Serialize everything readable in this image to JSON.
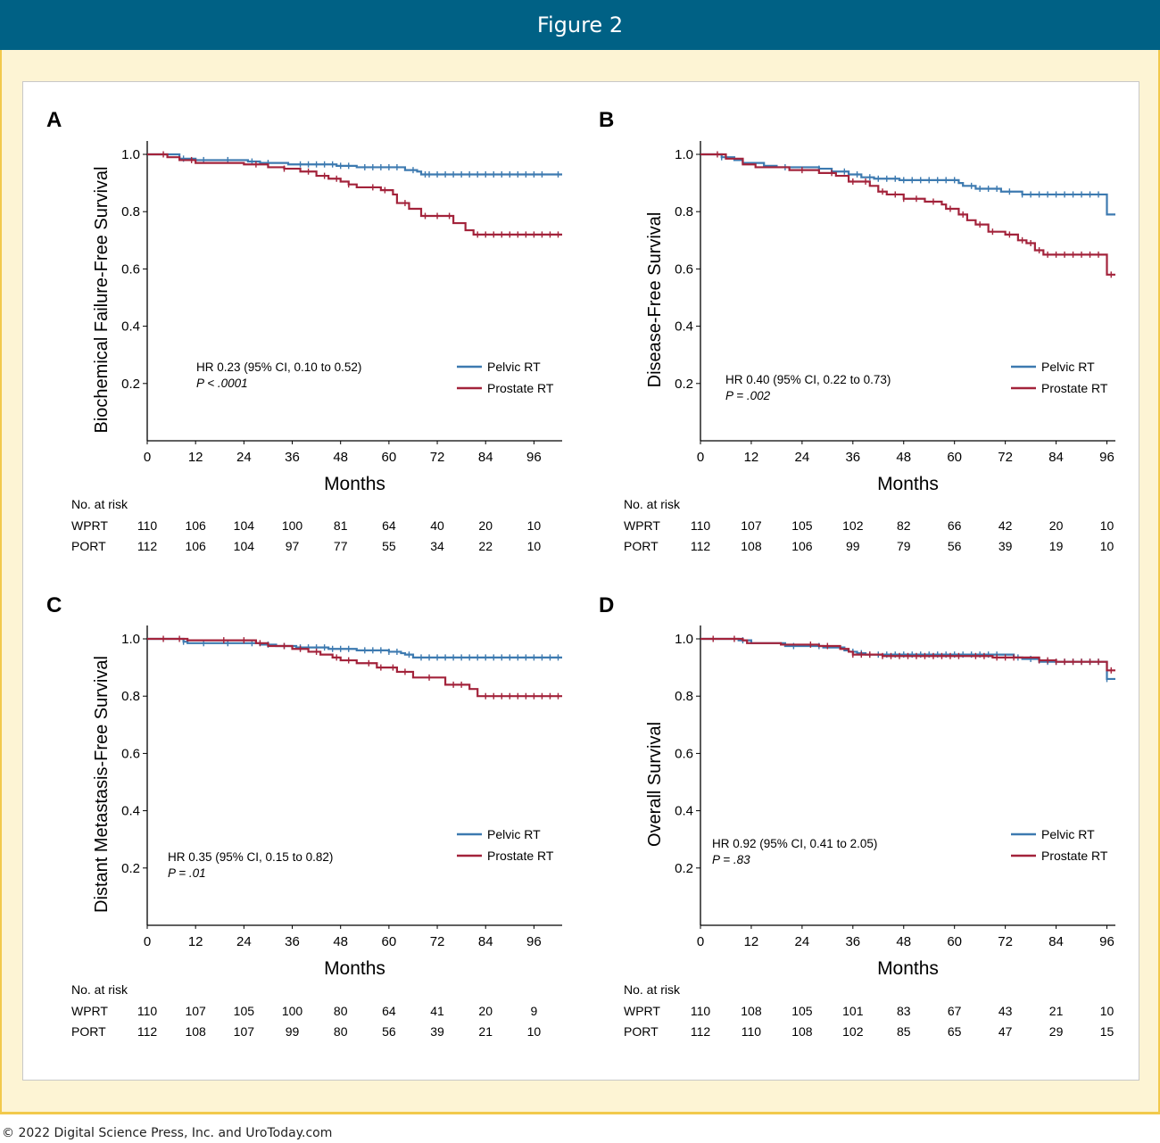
{
  "header": {
    "title": "Figure 2"
  },
  "footer": {
    "copyright": "© 2022 Digital Science Press, Inc. and UroToday.com"
  },
  "colors": {
    "pelvic": "#3d7ab0",
    "prostate": "#a3233b",
    "banner": "#006185",
    "frame": "#f2c94c"
  },
  "chart_data": [
    {
      "type": "line",
      "panel": "A",
      "ylabel": "Biochemical Failure-Free Survival",
      "xlabel": "Months",
      "xlim": [
        0,
        103
      ],
      "ylim": [
        0,
        1.0
      ],
      "xticks": [
        0,
        12,
        24,
        36,
        48,
        60,
        72,
        84,
        96
      ],
      "yticks": [
        1.0,
        0.8,
        0.6,
        0.4,
        0.2
      ],
      "stats": [
        "HR 0.23 (95% CI, 0.10 to 0.52)",
        "P < .0001"
      ],
      "risk_title": "No. at risk",
      "risk_times": [
        0,
        12,
        24,
        36,
        48,
        60,
        72,
        84,
        96
      ],
      "series": [
        {
          "name": "Pelvic RT",
          "risk_label": "WPRT",
          "risk": [
            110,
            106,
            104,
            100,
            81,
            64,
            40,
            20,
            10
          ],
          "steps": [
            [
              0,
              1.0
            ],
            [
              3,
              1.0
            ],
            [
              8,
              0.985
            ],
            [
              12,
              0.98
            ],
            [
              25,
              0.975
            ],
            [
              28,
              0.97
            ],
            [
              35,
              0.965
            ],
            [
              47,
              0.96
            ],
            [
              52,
              0.955
            ],
            [
              64,
              0.945
            ],
            [
              67,
              0.94
            ],
            [
              68,
              0.93
            ],
            [
              103,
              0.93
            ]
          ],
          "censors": [
            9,
            14,
            20,
            26,
            30,
            38,
            40,
            42,
            44,
            46,
            48,
            50,
            54,
            56,
            58,
            60,
            62,
            66,
            69,
            70,
            72,
            74,
            76,
            78,
            80,
            82,
            84,
            86,
            88,
            90,
            92,
            94,
            96,
            98,
            102
          ]
        },
        {
          "name": "Prostate RT",
          "risk_label": "PORT",
          "risk": [
            112,
            106,
            104,
            97,
            77,
            55,
            34,
            22,
            10
          ],
          "steps": [
            [
              0,
              1.0
            ],
            [
              5,
              0.99
            ],
            [
              8,
              0.98
            ],
            [
              12,
              0.97
            ],
            [
              24,
              0.965
            ],
            [
              30,
              0.955
            ],
            [
              34,
              0.95
            ],
            [
              38,
              0.94
            ],
            [
              42,
              0.925
            ],
            [
              45,
              0.915
            ],
            [
              48,
              0.905
            ],
            [
              50,
              0.895
            ],
            [
              52,
              0.885
            ],
            [
              58,
              0.875
            ],
            [
              61,
              0.86
            ],
            [
              62,
              0.83
            ],
            [
              65,
              0.81
            ],
            [
              68,
              0.785
            ],
            [
              76,
              0.76
            ],
            [
              79,
              0.735
            ],
            [
              81,
              0.72
            ],
            [
              103,
              0.72
            ]
          ],
          "censors": [
            4,
            11,
            27,
            34,
            40,
            44,
            47,
            50,
            56,
            59,
            64,
            69,
            72,
            75,
            82,
            84,
            86,
            88,
            90,
            92,
            94,
            96,
            98,
            100,
            102
          ]
        }
      ]
    },
    {
      "type": "line",
      "panel": "B",
      "ylabel": "Disease-Free Survival",
      "xlabel": "Months",
      "xlim": [
        0,
        98
      ],
      "ylim": [
        0,
        1.0
      ],
      "xticks": [
        0,
        12,
        24,
        36,
        48,
        60,
        72,
        84,
        96
      ],
      "yticks": [
        1.0,
        0.8,
        0.6,
        0.4,
        0.2
      ],
      "stats": [
        "HR 0.40 (95% CI, 0.22 to 0.73)",
        "P = .002"
      ],
      "risk_title": "No. at risk",
      "risk_times": [
        0,
        12,
        24,
        36,
        48,
        60,
        72,
        84,
        96
      ],
      "series": [
        {
          "name": "Pelvic RT",
          "risk_label": "WPRT",
          "risk": [
            110,
            107,
            105,
            102,
            82,
            66,
            42,
            20,
            10
          ],
          "steps": [
            [
              0,
              1.0
            ],
            [
              5,
              0.99
            ],
            [
              8,
              0.98
            ],
            [
              10,
              0.97
            ],
            [
              15,
              0.96
            ],
            [
              18,
              0.955
            ],
            [
              28,
              0.95
            ],
            [
              31,
              0.94
            ],
            [
              35,
              0.93
            ],
            [
              38,
              0.92
            ],
            [
              41,
              0.915
            ],
            [
              47,
              0.91
            ],
            [
              61,
              0.9
            ],
            [
              62,
              0.89
            ],
            [
              65,
              0.88
            ],
            [
              71,
              0.87
            ],
            [
              76,
              0.86
            ],
            [
              96,
              0.86
            ],
            [
              96,
              0.79
            ],
            [
              98,
              0.79
            ]
          ],
          "censors": [
            5,
            20,
            28,
            34,
            37,
            40,
            42,
            44,
            46,
            48,
            50,
            52,
            54,
            56,
            58,
            60,
            64,
            66,
            68,
            70,
            73,
            76,
            78,
            80,
            82,
            84,
            86,
            88,
            90,
            92,
            94
          ]
        },
        {
          "name": "Prostate RT",
          "risk_label": "PORT",
          "risk": [
            112,
            108,
            106,
            99,
            79,
            56,
            39,
            19,
            10
          ],
          "steps": [
            [
              0,
              1.0
            ],
            [
              6,
              0.985
            ],
            [
              10,
              0.965
            ],
            [
              13,
              0.955
            ],
            [
              21,
              0.945
            ],
            [
              28,
              0.935
            ],
            [
              32,
              0.925
            ],
            [
              35,
              0.905
            ],
            [
              40,
              0.89
            ],
            [
              42,
              0.87
            ],
            [
              44,
              0.86
            ],
            [
              48,
              0.845
            ],
            [
              53,
              0.835
            ],
            [
              57,
              0.825
            ],
            [
              58,
              0.81
            ],
            [
              61,
              0.79
            ],
            [
              63,
              0.77
            ],
            [
              65,
              0.755
            ],
            [
              68,
              0.73
            ],
            [
              72,
              0.72
            ],
            [
              75,
              0.7
            ],
            [
              77,
              0.69
            ],
            [
              79,
              0.665
            ],
            [
              81,
              0.65
            ],
            [
              96,
              0.65
            ],
            [
              96,
              0.58
            ],
            [
              98,
              0.58
            ]
          ],
          "censors": [
            4,
            24,
            31,
            36,
            39,
            43,
            46,
            48,
            51,
            55,
            59,
            62,
            66,
            69,
            73,
            76,
            78,
            80,
            82,
            84,
            86,
            88,
            90,
            92,
            94,
            97
          ]
        }
      ]
    },
    {
      "type": "line",
      "panel": "C",
      "ylabel": "Distant Metastasis-Free Survival",
      "xlabel": "Months",
      "xlim": [
        0,
        103
      ],
      "ylim": [
        0,
        1.0
      ],
      "xticks": [
        0,
        12,
        24,
        36,
        48,
        60,
        72,
        84,
        96
      ],
      "yticks": [
        1.0,
        0.8,
        0.6,
        0.4,
        0.2
      ],
      "stats": [
        "HR 0.35 (95% CI, 0.15 to 0.82)",
        "P = .01"
      ],
      "risk_title": "No. at risk",
      "risk_times": [
        0,
        12,
        24,
        36,
        48,
        60,
        72,
        84,
        96
      ],
      "series": [
        {
          "name": "Pelvic RT",
          "risk_label": "WPRT",
          "risk": [
            110,
            107,
            105,
            100,
            80,
            64,
            41,
            20,
            9
          ],
          "steps": [
            [
              0,
              1.0
            ],
            [
              9,
              0.99
            ],
            [
              10,
              0.985
            ],
            [
              28,
              0.98
            ],
            [
              32,
              0.975
            ],
            [
              37,
              0.97
            ],
            [
              45,
              0.965
            ],
            [
              52,
              0.96
            ],
            [
              60,
              0.955
            ],
            [
              63,
              0.95
            ],
            [
              64,
              0.945
            ],
            [
              66,
              0.935
            ],
            [
              103,
              0.935
            ]
          ],
          "censors": [
            9,
            14,
            20,
            26,
            30,
            34,
            38,
            40,
            42,
            44,
            46,
            48,
            50,
            54,
            56,
            58,
            60,
            62,
            65,
            68,
            70,
            72,
            74,
            76,
            78,
            80,
            82,
            84,
            86,
            88,
            90,
            92,
            94,
            96,
            98,
            100,
            102
          ]
        },
        {
          "name": "Prostate RT",
          "risk_label": "PORT",
          "risk": [
            112,
            108,
            107,
            99,
            80,
            56,
            39,
            21,
            10
          ],
          "steps": [
            [
              0,
              1.0
            ],
            [
              10,
              0.995
            ],
            [
              27,
              0.985
            ],
            [
              30,
              0.975
            ],
            [
              36,
              0.965
            ],
            [
              40,
              0.955
            ],
            [
              43,
              0.945
            ],
            [
              46,
              0.935
            ],
            [
              48,
              0.925
            ],
            [
              52,
              0.915
            ],
            [
              57,
              0.9
            ],
            [
              62,
              0.885
            ],
            [
              66,
              0.865
            ],
            [
              74,
              0.84
            ],
            [
              80,
              0.825
            ],
            [
              82,
              0.8
            ],
            [
              103,
              0.8
            ]
          ],
          "censors": [
            4,
            8,
            19,
            24,
            28,
            34,
            38,
            42,
            47,
            50,
            55,
            58,
            61,
            64,
            70,
            76,
            78,
            84,
            86,
            88,
            90,
            92,
            94,
            96,
            98,
            100,
            102
          ]
        }
      ]
    },
    {
      "type": "line",
      "panel": "D",
      "ylabel": "Overall Survival",
      "xlabel": "Months",
      "xlim": [
        0,
        98
      ],
      "ylim": [
        0,
        1.0
      ],
      "xticks": [
        0,
        12,
        24,
        36,
        48,
        60,
        72,
        84,
        96
      ],
      "yticks": [
        1.0,
        0.8,
        0.6,
        0.4,
        0.2
      ],
      "stats": [
        "HR 0.92 (95% CI, 0.41 to 2.05)",
        "P = .83"
      ],
      "risk_title": "No. at risk",
      "risk_times": [
        0,
        12,
        24,
        36,
        48,
        60,
        72,
        84,
        96
      ],
      "series": [
        {
          "name": "Pelvic RT",
          "risk_label": "WPRT",
          "risk": [
            110,
            108,
            105,
            101,
            83,
            67,
            43,
            21,
            10
          ],
          "steps": [
            [
              0,
              1.0
            ],
            [
              9,
              0.995
            ],
            [
              12,
              0.985
            ],
            [
              20,
              0.975
            ],
            [
              29,
              0.97
            ],
            [
              34,
              0.96
            ],
            [
              35,
              0.955
            ],
            [
              37,
              0.95
            ],
            [
              39,
              0.945
            ],
            [
              72,
              0.945
            ],
            [
              74,
              0.935
            ],
            [
              76,
              0.93
            ],
            [
              80,
              0.92
            ],
            [
              96,
              0.92
            ],
            [
              96,
              0.86
            ],
            [
              98,
              0.86
            ]
          ],
          "censors": [
            10,
            22,
            28,
            36,
            38,
            40,
            42,
            44,
            46,
            48,
            50,
            52,
            54,
            56,
            58,
            60,
            62,
            64,
            66,
            68,
            70,
            75,
            78,
            82,
            84,
            86,
            88,
            90,
            92,
            94,
            96
          ]
        },
        {
          "name": "Prostate RT",
          "risk_label": "PORT",
          "risk": [
            112,
            110,
            108,
            102,
            85,
            65,
            47,
            29,
            15
          ],
          "steps": [
            [
              0,
              1.0
            ],
            [
              10,
              0.995
            ],
            [
              11,
              0.985
            ],
            [
              19,
              0.98
            ],
            [
              28,
              0.975
            ],
            [
              33,
              0.965
            ],
            [
              35,
              0.955
            ],
            [
              36,
              0.945
            ],
            [
              43,
              0.94
            ],
            [
              68,
              0.94
            ],
            [
              69,
              0.935
            ],
            [
              80,
              0.925
            ],
            [
              84,
              0.92
            ],
            [
              96,
              0.92
            ],
            [
              96,
              0.89
            ],
            [
              98,
              0.89
            ]
          ],
          "censors": [
            3,
            8,
            26,
            30,
            36,
            38,
            40,
            43,
            45,
            47,
            49,
            51,
            53,
            55,
            57,
            59,
            61,
            65,
            67,
            70,
            72,
            74,
            80,
            82,
            84,
            86,
            88,
            90,
            92,
            94,
            97
          ]
        }
      ]
    }
  ]
}
